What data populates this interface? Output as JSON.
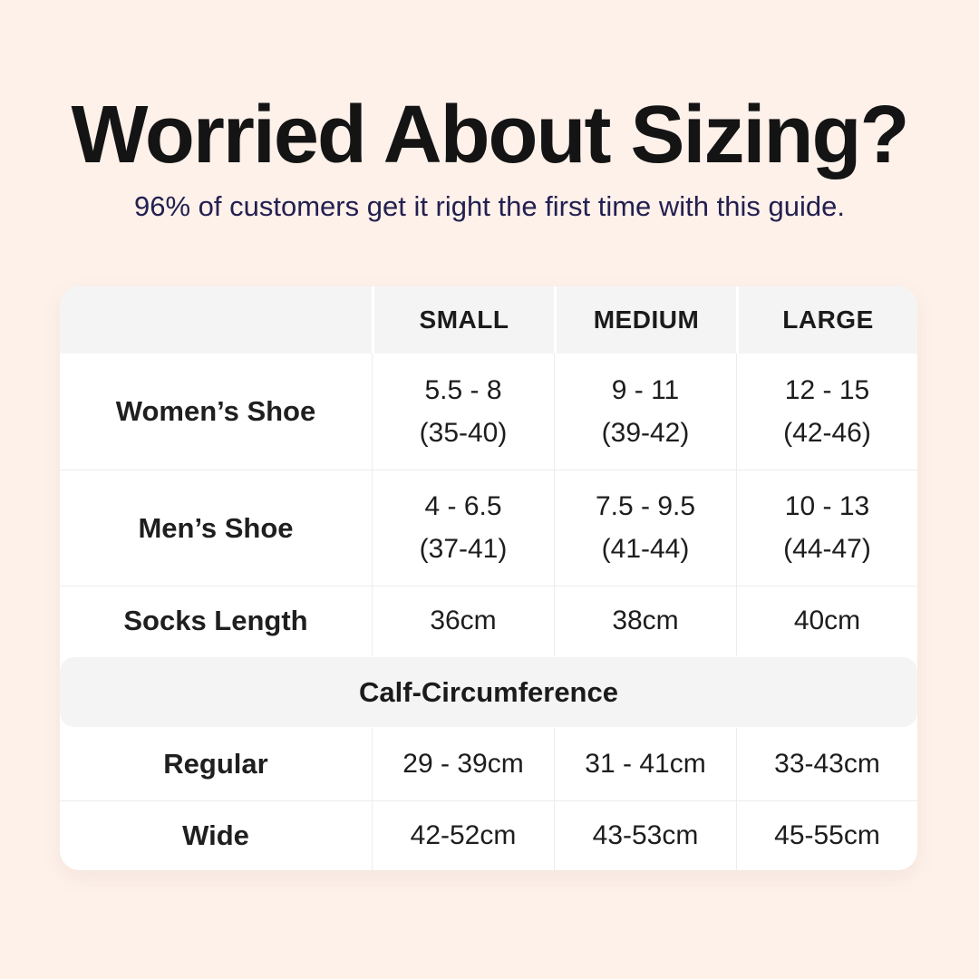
{
  "header": {
    "title": "Worried About Sizing?",
    "subtitle": "96% of customers get it right the first time with this guide."
  },
  "table": {
    "size_columns": [
      "SMALL",
      "MEDIUM",
      "LARGE"
    ],
    "shoe_rows": [
      {
        "label": "Women’s Shoe",
        "small": {
          "range": "5.5 - 8",
          "eu": "(35-40)"
        },
        "medium": {
          "range": "9 - 11",
          "eu": "(39-42)"
        },
        "large": {
          "range": "12 - 15",
          "eu": "(42-46)"
        }
      },
      {
        "label": "Men’s Shoe",
        "small": {
          "range": "4 - 6.5",
          "eu": "(37-41)"
        },
        "medium": {
          "range": "7.5 - 9.5",
          "eu": "(41-44)"
        },
        "large": {
          "range": "10 - 13",
          "eu": "(44-47)"
        }
      }
    ],
    "socks_row": {
      "label": "Socks Length",
      "small": "36cm",
      "medium": "38cm",
      "large": "40cm"
    },
    "calf_section": {
      "header": "Calf-Circumference",
      "rows": [
        {
          "label": "Regular",
          "small": "29 - 39cm",
          "medium": "31 - 41cm",
          "large": "33-43cm"
        },
        {
          "label": "Wide",
          "small": "42-52cm",
          "medium": "43-53cm",
          "large": "45-55cm"
        }
      ]
    }
  },
  "colors": {
    "background": "#fdf1ea",
    "card": "#ffffff",
    "header_band": "#f4f4f5",
    "grid_line": "#ececec",
    "title_text": "#141414",
    "subtitle_text": "#232051",
    "table_text": "#1d1d1d"
  },
  "chart_data": {
    "type": "table",
    "title": "Worried About Sizing?",
    "subtitle": "96% of customers get it right the first time with this guide.",
    "columns": [
      "",
      "SMALL",
      "MEDIUM",
      "LARGE"
    ],
    "rows": [
      [
        "Women’s Shoe",
        "5.5 - 8 (35-40)",
        "9 - 11 (39-42)",
        "12 - 15 (42-46)"
      ],
      [
        "Men’s Shoe",
        "4 - 6.5 (37-41)",
        "7.5 - 9.5 (41-44)",
        "10 - 13 (44-47)"
      ],
      [
        "Socks Length",
        "36cm",
        "38cm",
        "40cm"
      ],
      [
        "Calf-Circumference (section header)",
        "",
        "",
        ""
      ],
      [
        "Regular",
        "29 - 39cm",
        "31 - 41cm",
        "33-43cm"
      ],
      [
        "Wide",
        "42-52cm",
        "43-53cm",
        "45-55cm"
      ]
    ]
  }
}
